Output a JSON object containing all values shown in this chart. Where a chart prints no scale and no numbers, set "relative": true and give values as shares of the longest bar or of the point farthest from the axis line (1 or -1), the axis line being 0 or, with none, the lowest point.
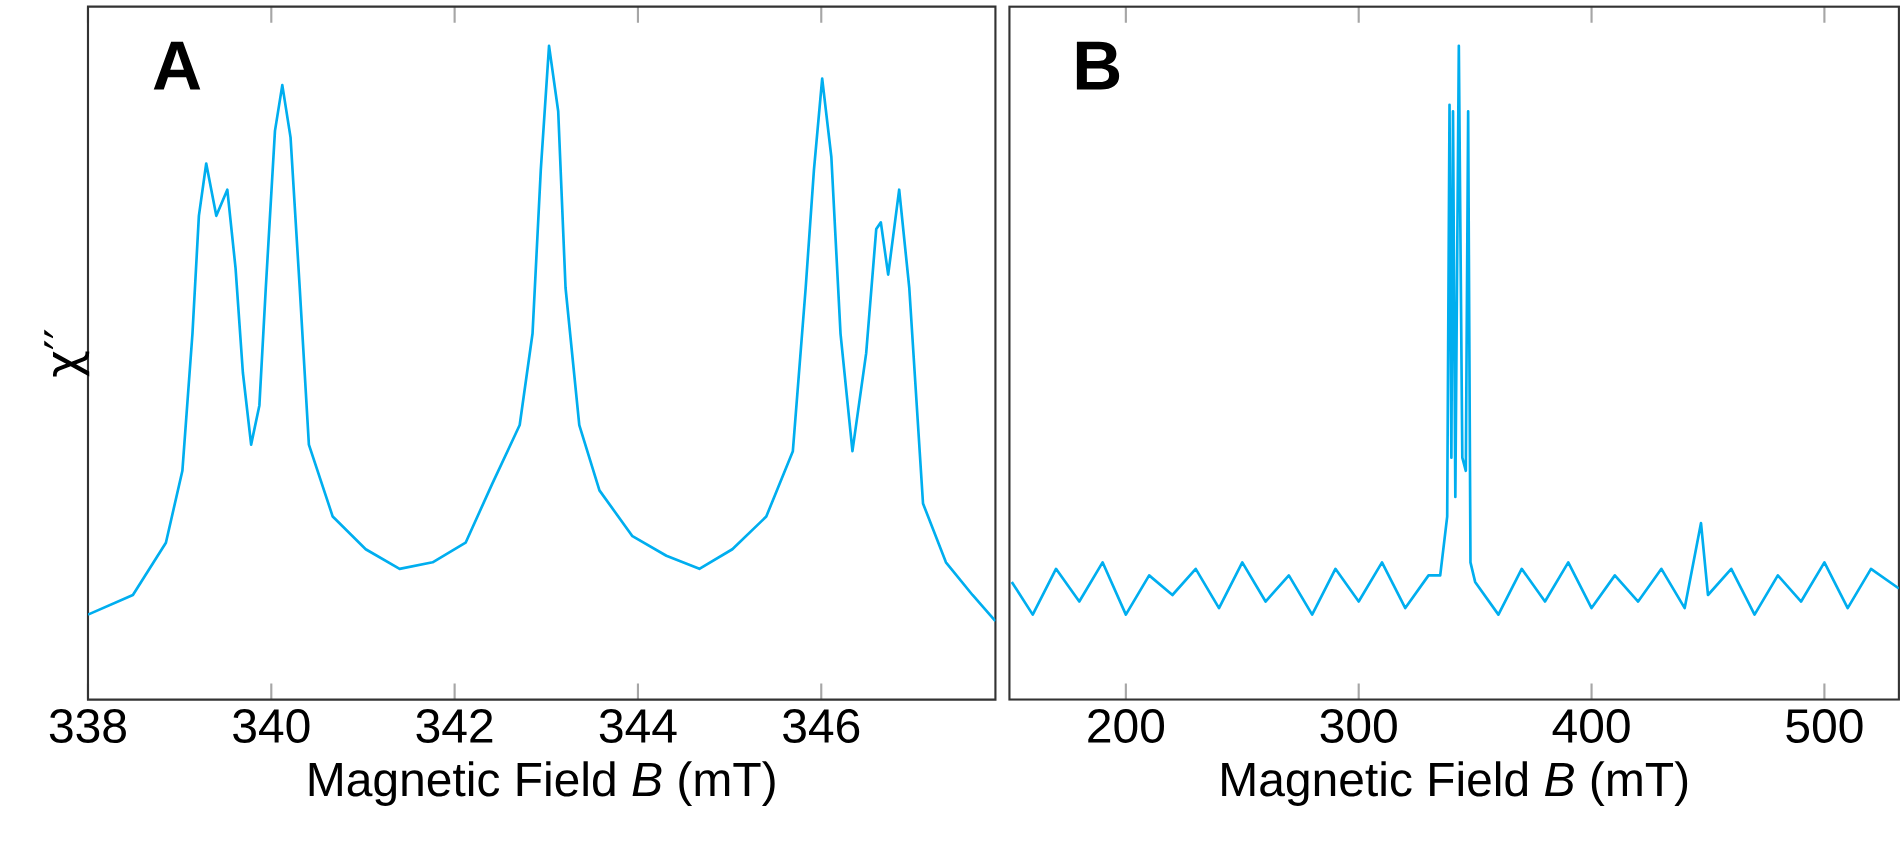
{
  "chart_data": [
    {
      "type": "line",
      "title": "A",
      "xlabel": "Magnetic Field *B* (mT)",
      "ylabel": "χ′′",
      "relative": true,
      "color": "#00aeef",
      "marker": "none",
      "xlim": [
        338,
        347.9
      ],
      "xticks": [
        338,
        340,
        342,
        344,
        346
      ],
      "x": [
        338.0,
        338.49,
        338.85,
        339.03,
        339.14,
        339.21,
        339.29,
        339.4,
        339.52,
        339.61,
        339.69,
        339.78,
        339.87,
        339.94,
        340.04,
        340.12,
        340.21,
        340.31,
        340.41,
        340.67,
        341.03,
        341.4,
        341.76,
        342.12,
        342.41,
        342.71,
        342.85,
        342.94,
        343.03,
        343.13,
        343.21,
        343.36,
        343.58,
        343.94,
        344.31,
        344.67,
        345.03,
        345.4,
        345.69,
        345.83,
        345.92,
        346.01,
        346.11,
        346.21,
        346.34,
        346.49,
        346.6,
        346.65,
        346.73,
        346.85,
        346.96,
        347.11,
        347.36,
        347.65,
        347.9
      ],
      "values": [
        0.13,
        0.16,
        0.24,
        0.35,
        0.56,
        0.74,
        0.82,
        0.74,
        0.78,
        0.66,
        0.5,
        0.39,
        0.45,
        0.63,
        0.87,
        0.94,
        0.86,
        0.63,
        0.39,
        0.28,
        0.23,
        0.2,
        0.21,
        0.24,
        0.33,
        0.42,
        0.56,
        0.81,
        1.0,
        0.9,
        0.63,
        0.42,
        0.32,
        0.25,
        0.22,
        0.2,
        0.23,
        0.28,
        0.38,
        0.63,
        0.81,
        0.95,
        0.83,
        0.56,
        0.38,
        0.53,
        0.72,
        0.73,
        0.65,
        0.78,
        0.63,
        0.3,
        0.21,
        0.16,
        0.12
      ]
    },
    {
      "type": "line",
      "title": "B",
      "xlabel": "Magnetic Field *B* (mT)",
      "relative": true,
      "color": "#00aeef",
      "marker": "none",
      "xlim": [
        150,
        532
      ],
      "xticks": [
        200,
        300,
        400,
        500
      ],
      "x": [
        151,
        160,
        170,
        180,
        190,
        200,
        210,
        220,
        230,
        240,
        250,
        260,
        270,
        280,
        290,
        300,
        310,
        320,
        330,
        335,
        338,
        339,
        339.8,
        340.5,
        341.5,
        343,
        344.5,
        346,
        347,
        348,
        350,
        360,
        370,
        380,
        390,
        400,
        410,
        420,
        430,
        440,
        447,
        450,
        460,
        470,
        480,
        490,
        500,
        510,
        520,
        532
      ],
      "values": [
        0.18,
        0.13,
        0.2,
        0.15,
        0.21,
        0.13,
        0.19,
        0.16,
        0.2,
        0.14,
        0.21,
        0.15,
        0.19,
        0.13,
        0.2,
        0.15,
        0.21,
        0.14,
        0.19,
        0.19,
        0.28,
        0.91,
        0.37,
        0.9,
        0.31,
        1.0,
        0.37,
        0.35,
        0.9,
        0.21,
        0.18,
        0.13,
        0.2,
        0.15,
        0.21,
        0.14,
        0.19,
        0.15,
        0.2,
        0.14,
        0.27,
        0.16,
        0.2,
        0.13,
        0.19,
        0.15,
        0.21,
        0.14,
        0.2,
        0.17
      ]
    }
  ]
}
